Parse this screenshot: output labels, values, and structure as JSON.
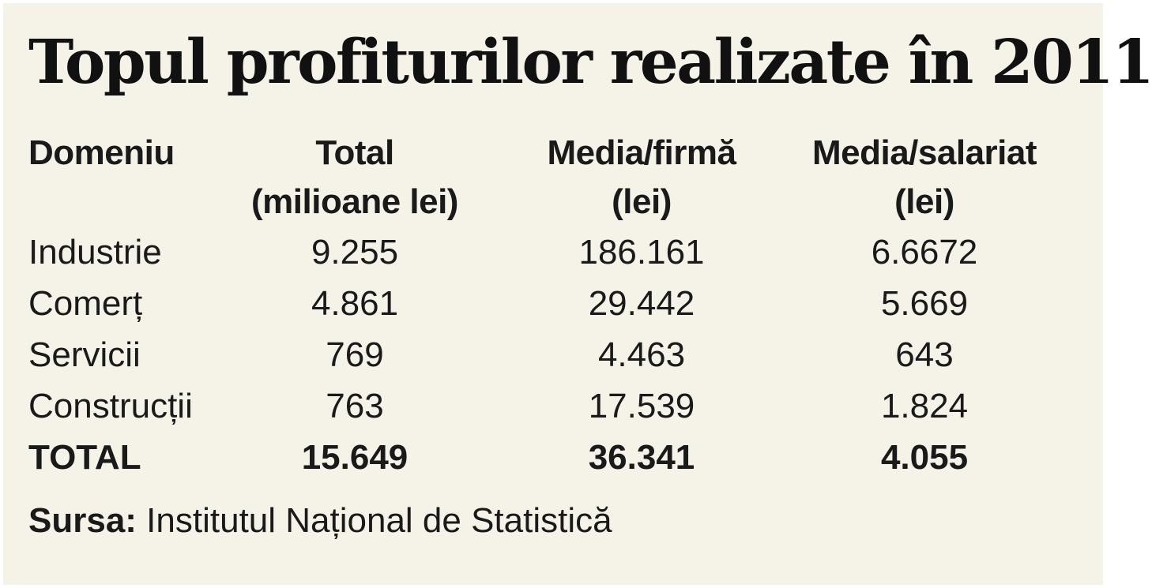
{
  "title": "Topul profiturilor realizate în 2011",
  "chart_data": {
    "type": "table",
    "title": "Topul profiturilor realizate în 2011",
    "columns": [
      {
        "line1": "Domeniu",
        "line2": ""
      },
      {
        "line1": "Total",
        "line2": "(milioane lei)"
      },
      {
        "line1": "Media/firmă",
        "line2": "(lei)"
      },
      {
        "line1": "Media/salariat",
        "line2": "(lei)"
      }
    ],
    "rows": [
      [
        "Industrie",
        "9.255",
        "186.161",
        "6.6672"
      ],
      [
        "Comerț",
        "4.861",
        "29.442",
        "5.669"
      ],
      [
        "Servicii",
        "769",
        "4.463",
        "643"
      ],
      [
        "Construcții",
        "763",
        "17.539",
        "1.824"
      ]
    ],
    "total_row": [
      "TOTAL",
      "15.649",
      "36.341",
      "4.055"
    ]
  },
  "source": {
    "label": "Sursa:",
    "text": " Institutul Național de Statistică"
  }
}
